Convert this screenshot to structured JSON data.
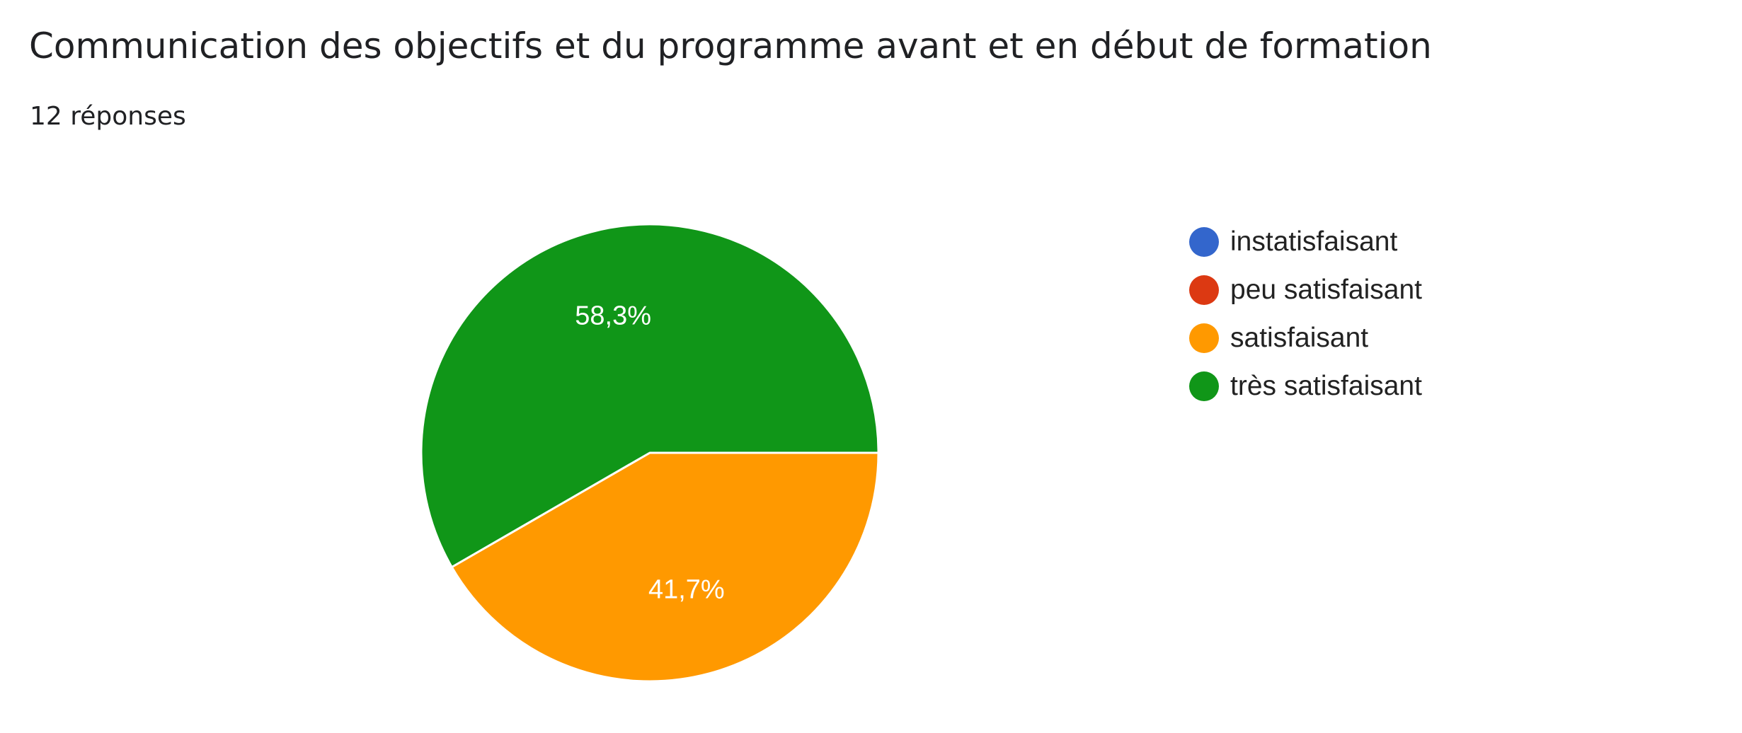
{
  "header": {
    "title": "Communication des objectifs et du programme avant et en début de formation",
    "responses": "12 réponses"
  },
  "chart_data": {
    "type": "pie",
    "total_responses": 12,
    "categories": [
      "instatisfaisant",
      "peu satisfaisant",
      "satisfaisant",
      "très satisfaisant"
    ],
    "values": [
      0,
      0,
      5,
      7
    ],
    "percent_labels": [
      "",
      "",
      "41,7%",
      "58,3%"
    ],
    "colors": [
      "#3366cc",
      "#dc3912",
      "#ff9900",
      "#109618"
    ],
    "legend_position": "right",
    "start_angle": "3 o'clock",
    "direction": "clockwise"
  }
}
